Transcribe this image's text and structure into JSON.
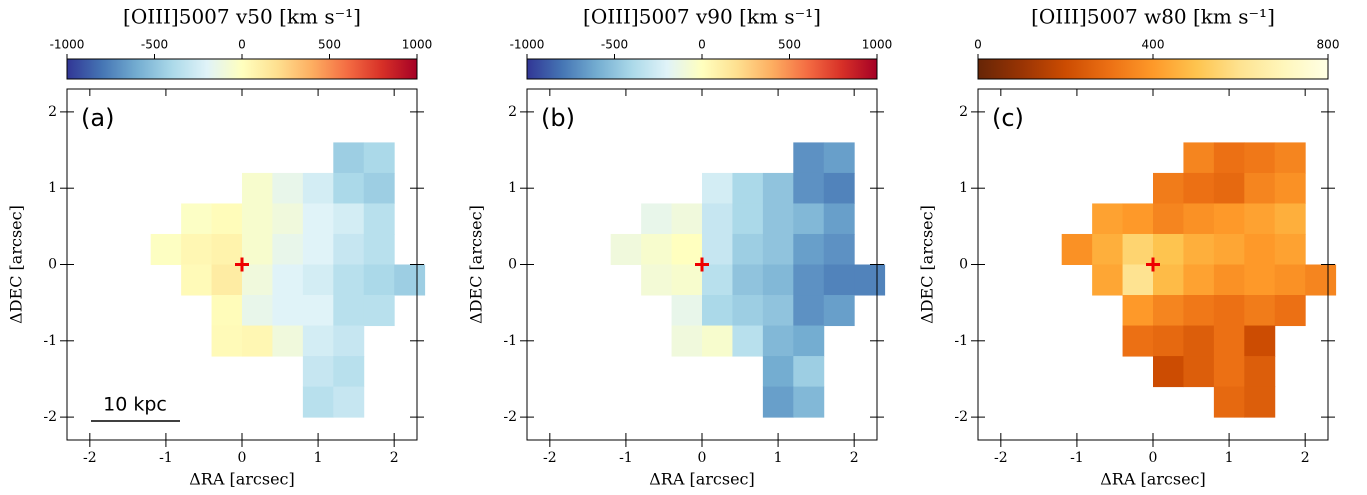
{
  "chart_data": [
    {
      "type": "heatmap",
      "title": "[OIII]5007 v50 [km s⁻¹]",
      "panel_label": "(a)",
      "scale_bar_label": "10 kpc",
      "xlabel": "ΔRA [arcsec]",
      "ylabel": "ΔDEC [arcsec]",
      "xlim": [
        -2.3,
        2.3
      ],
      "ylim": [
        -2.3,
        2.3
      ],
      "xticks": [
        -2,
        -1,
        0,
        1,
        2
      ],
      "yticks": [
        -2,
        -1,
        0,
        1,
        2
      ],
      "colorbar_lim": [
        -1000,
        1000
      ],
      "colorbar_ticks": [
        -1000,
        -500,
        0,
        500,
        1000
      ],
      "cmap_colors": [
        "#313695",
        "#4575b4",
        "#74add1",
        "#abd9e9",
        "#e0f3f8",
        "#ffffbf",
        "#fee090",
        "#fdae61",
        "#f46d43",
        "#d73027",
        "#a50026"
      ],
      "x": [
        -1.0,
        -0.6,
        -0.2,
        0.2,
        0.6,
        1.0,
        1.4,
        1.8,
        2.2
      ],
      "y": [
        1.4,
        1.0,
        0.6,
        0.2,
        -0.2,
        -0.6,
        -1.0,
        -1.4,
        -1.8
      ],
      "z": [
        [
          null,
          null,
          null,
          null,
          null,
          null,
          -450,
          -400,
          null
        ],
        [
          null,
          null,
          null,
          -50,
          -150,
          -250,
          -400,
          -450,
          null
        ],
        [
          null,
          -20,
          20,
          -50,
          -100,
          -200,
          -250,
          -350,
          null
        ],
        [
          -10,
          50,
          80,
          -50,
          -150,
          -200,
          -300,
          -350,
          null
        ],
        [
          null,
          30,
          120,
          -100,
          -200,
          -250,
          -350,
          -400,
          -450
        ],
        [
          null,
          null,
          20,
          -150,
          -200,
          -200,
          -350,
          -350,
          null
        ],
        [
          null,
          null,
          30,
          50,
          -100,
          -250,
          -300,
          null,
          null
        ],
        [
          null,
          null,
          null,
          null,
          null,
          -300,
          -350,
          null,
          null
        ],
        [
          null,
          null,
          null,
          null,
          null,
          -350,
          -300,
          null,
          null
        ]
      ]
    },
    {
      "type": "heatmap",
      "title": "[OIII]5007 v90 [km s⁻¹]",
      "panel_label": "(b)",
      "xlabel": "ΔRA [arcsec]",
      "ylabel": "ΔDEC [arcsec]",
      "xlim": [
        -2.3,
        2.3
      ],
      "ylim": [
        -2.3,
        2.3
      ],
      "xticks": [
        -2,
        -1,
        0,
        1,
        2
      ],
      "yticks": [
        -2,
        -1,
        0,
        1,
        2
      ],
      "colorbar_lim": [
        -1000,
        1000
      ],
      "colorbar_ticks": [
        -1000,
        -500,
        0,
        500,
        1000
      ],
      "cmap_colors": [
        "#313695",
        "#4575b4",
        "#74add1",
        "#abd9e9",
        "#e0f3f8",
        "#ffffbf",
        "#fee090",
        "#fdae61",
        "#f46d43",
        "#d73027",
        "#a50026"
      ],
      "x": [
        -1.0,
        -0.6,
        -0.2,
        0.2,
        0.6,
        1.0,
        1.4,
        1.8,
        2.2
      ],
      "y": [
        1.4,
        1.0,
        0.6,
        0.2,
        -0.2,
        -0.6,
        -1.0,
        -1.4,
        -1.8
      ],
      "z": [
        [
          null,
          null,
          null,
          null,
          null,
          null,
          -700,
          -650,
          null
        ],
        [
          null,
          null,
          null,
          -250,
          -400,
          -500,
          -700,
          -750,
          null
        ],
        [
          null,
          -150,
          -100,
          -300,
          -400,
          -500,
          -550,
          -650,
          null
        ],
        [
          -100,
          -50,
          0,
          -300,
          -450,
          -500,
          -650,
          -700,
          null
        ],
        [
          null,
          -80,
          -50,
          -350,
          -500,
          -550,
          -700,
          -750,
          -750
        ],
        [
          null,
          null,
          -150,
          -400,
          -450,
          -500,
          -700,
          -650,
          null
        ],
        [
          null,
          null,
          -100,
          -50,
          -350,
          -550,
          -600,
          null,
          null
        ],
        [
          null,
          null,
          null,
          null,
          null,
          -600,
          -450,
          null,
          null
        ],
        [
          null,
          null,
          null,
          null,
          null,
          -650,
          -550,
          null,
          null
        ]
      ]
    },
    {
      "type": "heatmap",
      "title": "[OIII]5007 w80 [km s⁻¹]",
      "panel_label": "(c)",
      "xlabel": "ΔRA [arcsec]",
      "ylabel": "ΔDEC [arcsec]",
      "xlim": [
        -2.3,
        2.3
      ],
      "ylim": [
        -2.3,
        2.3
      ],
      "xticks": [
        -2,
        -1,
        0,
        1,
        2
      ],
      "yticks": [
        -2,
        -1,
        0,
        1,
        2
      ],
      "colorbar_lim": [
        0,
        800
      ],
      "colorbar_ticks": [
        0,
        400,
        800
      ],
      "cmap_colors": [
        "#662506",
        "#993404",
        "#cc4c02",
        "#ec7014",
        "#fe9929",
        "#fec44f",
        "#fee391",
        "#fff7bc",
        "#ffffe5"
      ],
      "x": [
        -1.0,
        -0.6,
        -0.2,
        0.2,
        0.6,
        1.0,
        1.4,
        1.8,
        2.2
      ],
      "y": [
        1.4,
        1.0,
        0.6,
        0.2,
        -0.2,
        -0.6,
        -1.0,
        -1.4,
        -1.8
      ],
      "z": [
        [
          null,
          null,
          null,
          null,
          350,
          300,
          320,
          350,
          null
        ],
        [
          null,
          null,
          null,
          330,
          300,
          280,
          350,
          380,
          null
        ],
        [
          null,
          420,
          400,
          350,
          380,
          400,
          420,
          450,
          null
        ],
        [
          380,
          450,
          550,
          500,
          450,
          430,
          400,
          420,
          null
        ],
        [
          null,
          430,
          600,
          480,
          420,
          380,
          400,
          380,
          350
        ],
        [
          null,
          null,
          400,
          350,
          320,
          300,
          330,
          300,
          null
        ],
        [
          null,
          null,
          300,
          280,
          250,
          300,
          200,
          null,
          null
        ],
        [
          null,
          null,
          null,
          200,
          250,
          300,
          250,
          null,
          null
        ],
        [
          null,
          null,
          null,
          null,
          null,
          280,
          250,
          null,
          null
        ]
      ]
    }
  ]
}
